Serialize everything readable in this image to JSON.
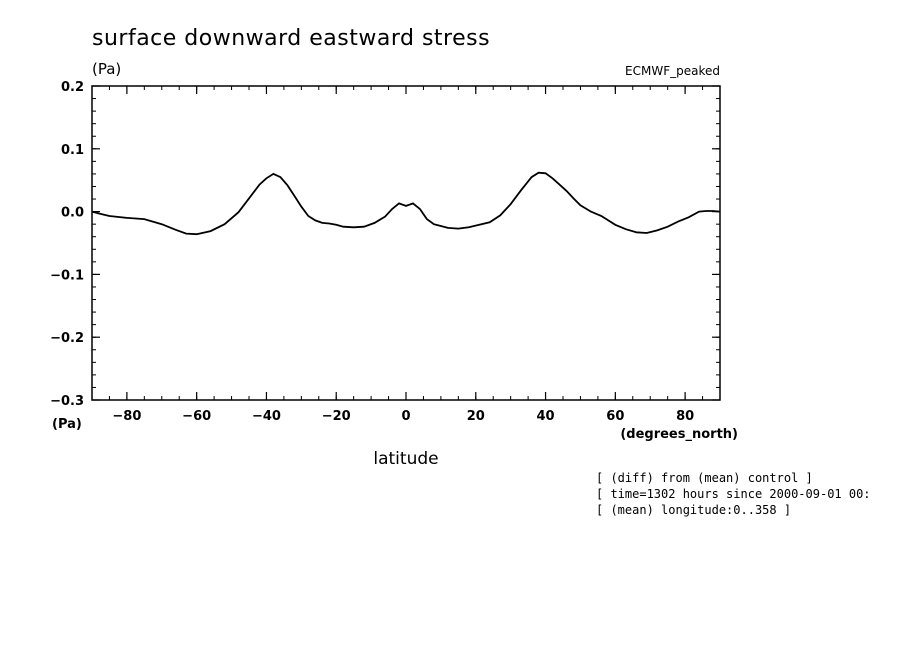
{
  "chart_data": {
    "type": "line",
    "title": "surface downward eastward stress",
    "subtitle": "ECMWF_peaked",
    "ylabel_unit": "(Pa)",
    "xlabel": "latitude",
    "xunit": "(degrees_north)",
    "corner_unit": "(Pa)",
    "xlim": [
      -90,
      90
    ],
    "ylim": [
      -0.3,
      0.2
    ],
    "xticks": [
      -80,
      -60,
      -40,
      -20,
      0,
      20,
      40,
      60,
      80
    ],
    "xtick_labels": [
      "−80",
      "−60",
      "−40",
      "−20",
      "0",
      "20",
      "40",
      "60",
      "80"
    ],
    "yticks": [
      0.2,
      0.1,
      0.0,
      -0.1,
      -0.2,
      -0.3
    ],
    "ytick_labels": [
      "0.2",
      "0.1",
      "0.0",
      "−0.1",
      "−0.2",
      "−0.3"
    ],
    "grid": false,
    "series": [
      {
        "x": [
          -90,
          -88,
          -85,
          -80,
          -75,
          -70,
          -66,
          -63,
          -60,
          -56,
          -52,
          -48,
          -45,
          -42,
          -40,
          -38,
          -36,
          -34,
          -32,
          -30,
          -28,
          -26,
          -24,
          -22,
          -20,
          -18,
          -15,
          -12,
          -9,
          -6,
          -4,
          -2,
          0,
          2,
          4,
          6,
          8,
          10,
          12,
          15,
          18,
          21,
          24,
          27,
          30,
          33,
          36,
          38,
          40,
          42,
          44,
          46,
          48,
          50,
          53,
          56,
          60,
          63,
          66,
          69,
          72,
          75,
          78,
          81,
          84,
          86,
          88,
          90
        ],
        "y": [
          0.0,
          -0.003,
          -0.007,
          -0.01,
          -0.012,
          -0.02,
          -0.029,
          -0.035,
          -0.036,
          -0.031,
          -0.02,
          -0.001,
          0.021,
          0.043,
          0.053,
          0.06,
          0.055,
          0.042,
          0.025,
          0.008,
          -0.007,
          -0.014,
          -0.018,
          -0.019,
          -0.021,
          -0.024,
          -0.025,
          -0.024,
          -0.018,
          -0.008,
          0.004,
          0.013,
          0.009,
          0.013,
          0.004,
          -0.012,
          -0.02,
          -0.023,
          -0.026,
          -0.027,
          -0.025,
          -0.021,
          -0.017,
          -0.006,
          0.012,
          0.034,
          0.055,
          0.062,
          0.061,
          0.053,
          0.043,
          0.033,
          0.021,
          0.01,
          0.0,
          -0.007,
          -0.021,
          -0.028,
          -0.033,
          -0.034,
          -0.03,
          -0.024,
          -0.016,
          -0.009,
          0.0,
          0.001,
          0.001,
          0.0
        ]
      }
    ]
  },
  "notes": [
    "[ (diff) from (mean) control ]",
    "[ time=1302 hours since 2000-09-01 00:",
    "[ (mean) longitude:0..358 ]"
  ]
}
